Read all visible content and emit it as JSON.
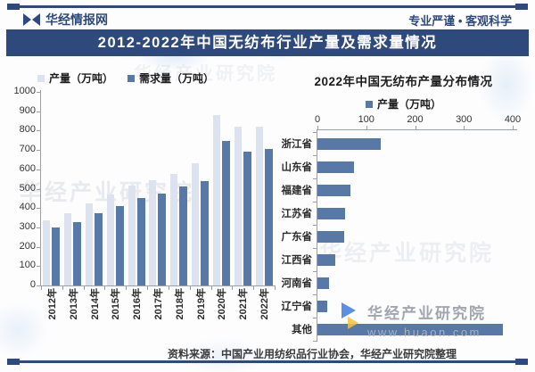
{
  "header": {
    "brand": "华经情报网",
    "slogan": "专业严谨 • 客观科学"
  },
  "banner": {
    "title": "2012-2022年中国无纺布行业产量及需求量情况"
  },
  "chart_data": [
    {
      "type": "bar",
      "title": "2012-2022年中国无纺布行业产量及需求量情况",
      "categories": [
        "2012年",
        "2013年",
        "2014年",
        "2015年",
        "2016年",
        "2017年",
        "2018年",
        "2019年",
        "2020年",
        "2021年",
        "2022年"
      ],
      "series": [
        {
          "name": "产量（万吨）",
          "color": "#dce3ee",
          "values": [
            335,
            372,
            422,
            468,
            516,
            542,
            576,
            630,
            878,
            820,
            822
          ]
        },
        {
          "name": "需求量（万吨）",
          "color": "#5878a8",
          "values": [
            300,
            328,
            374,
            410,
            450,
            474,
            510,
            538,
            745,
            692,
            705
          ]
        }
      ],
      "ylabel": "",
      "ylim": [
        0,
        1000
      ],
      "yticks": [
        0,
        100,
        200,
        300,
        400,
        500,
        600,
        700,
        800,
        900,
        1000
      ],
      "grid": false,
      "legend_position": "top"
    },
    {
      "type": "bar",
      "orientation": "horizontal",
      "title": "2022年中国无纺布产量分布情况",
      "categories": [
        "浙江省",
        "山东省",
        "福建省",
        "江苏省",
        "广东省",
        "江西省",
        "河南省",
        "辽宁省",
        "其他"
      ],
      "series": [
        {
          "name": "产量（万吨）",
          "color": "#5878a8",
          "values": [
            130,
            75,
            67,
            57,
            54,
            36,
            23,
            20,
            380
          ]
        }
      ],
      "xlim": [
        0,
        400
      ],
      "xticks": [
        0,
        100,
        200,
        300,
        400
      ],
      "axis_position": "top",
      "grid": false,
      "legend_position": "top"
    }
  ],
  "footer": {
    "source": "资料来源：中国产业用纺织品行业协会，华经产业研究院整理"
  },
  "watermark": {
    "brand": "华经产业研究院",
    "url": "www.huaon.com"
  },
  "colors": {
    "navy": "#2e4a7c",
    "bar_light": "#dce3ee",
    "bar_dark": "#5878a8",
    "axis": "#9aa0a6"
  }
}
